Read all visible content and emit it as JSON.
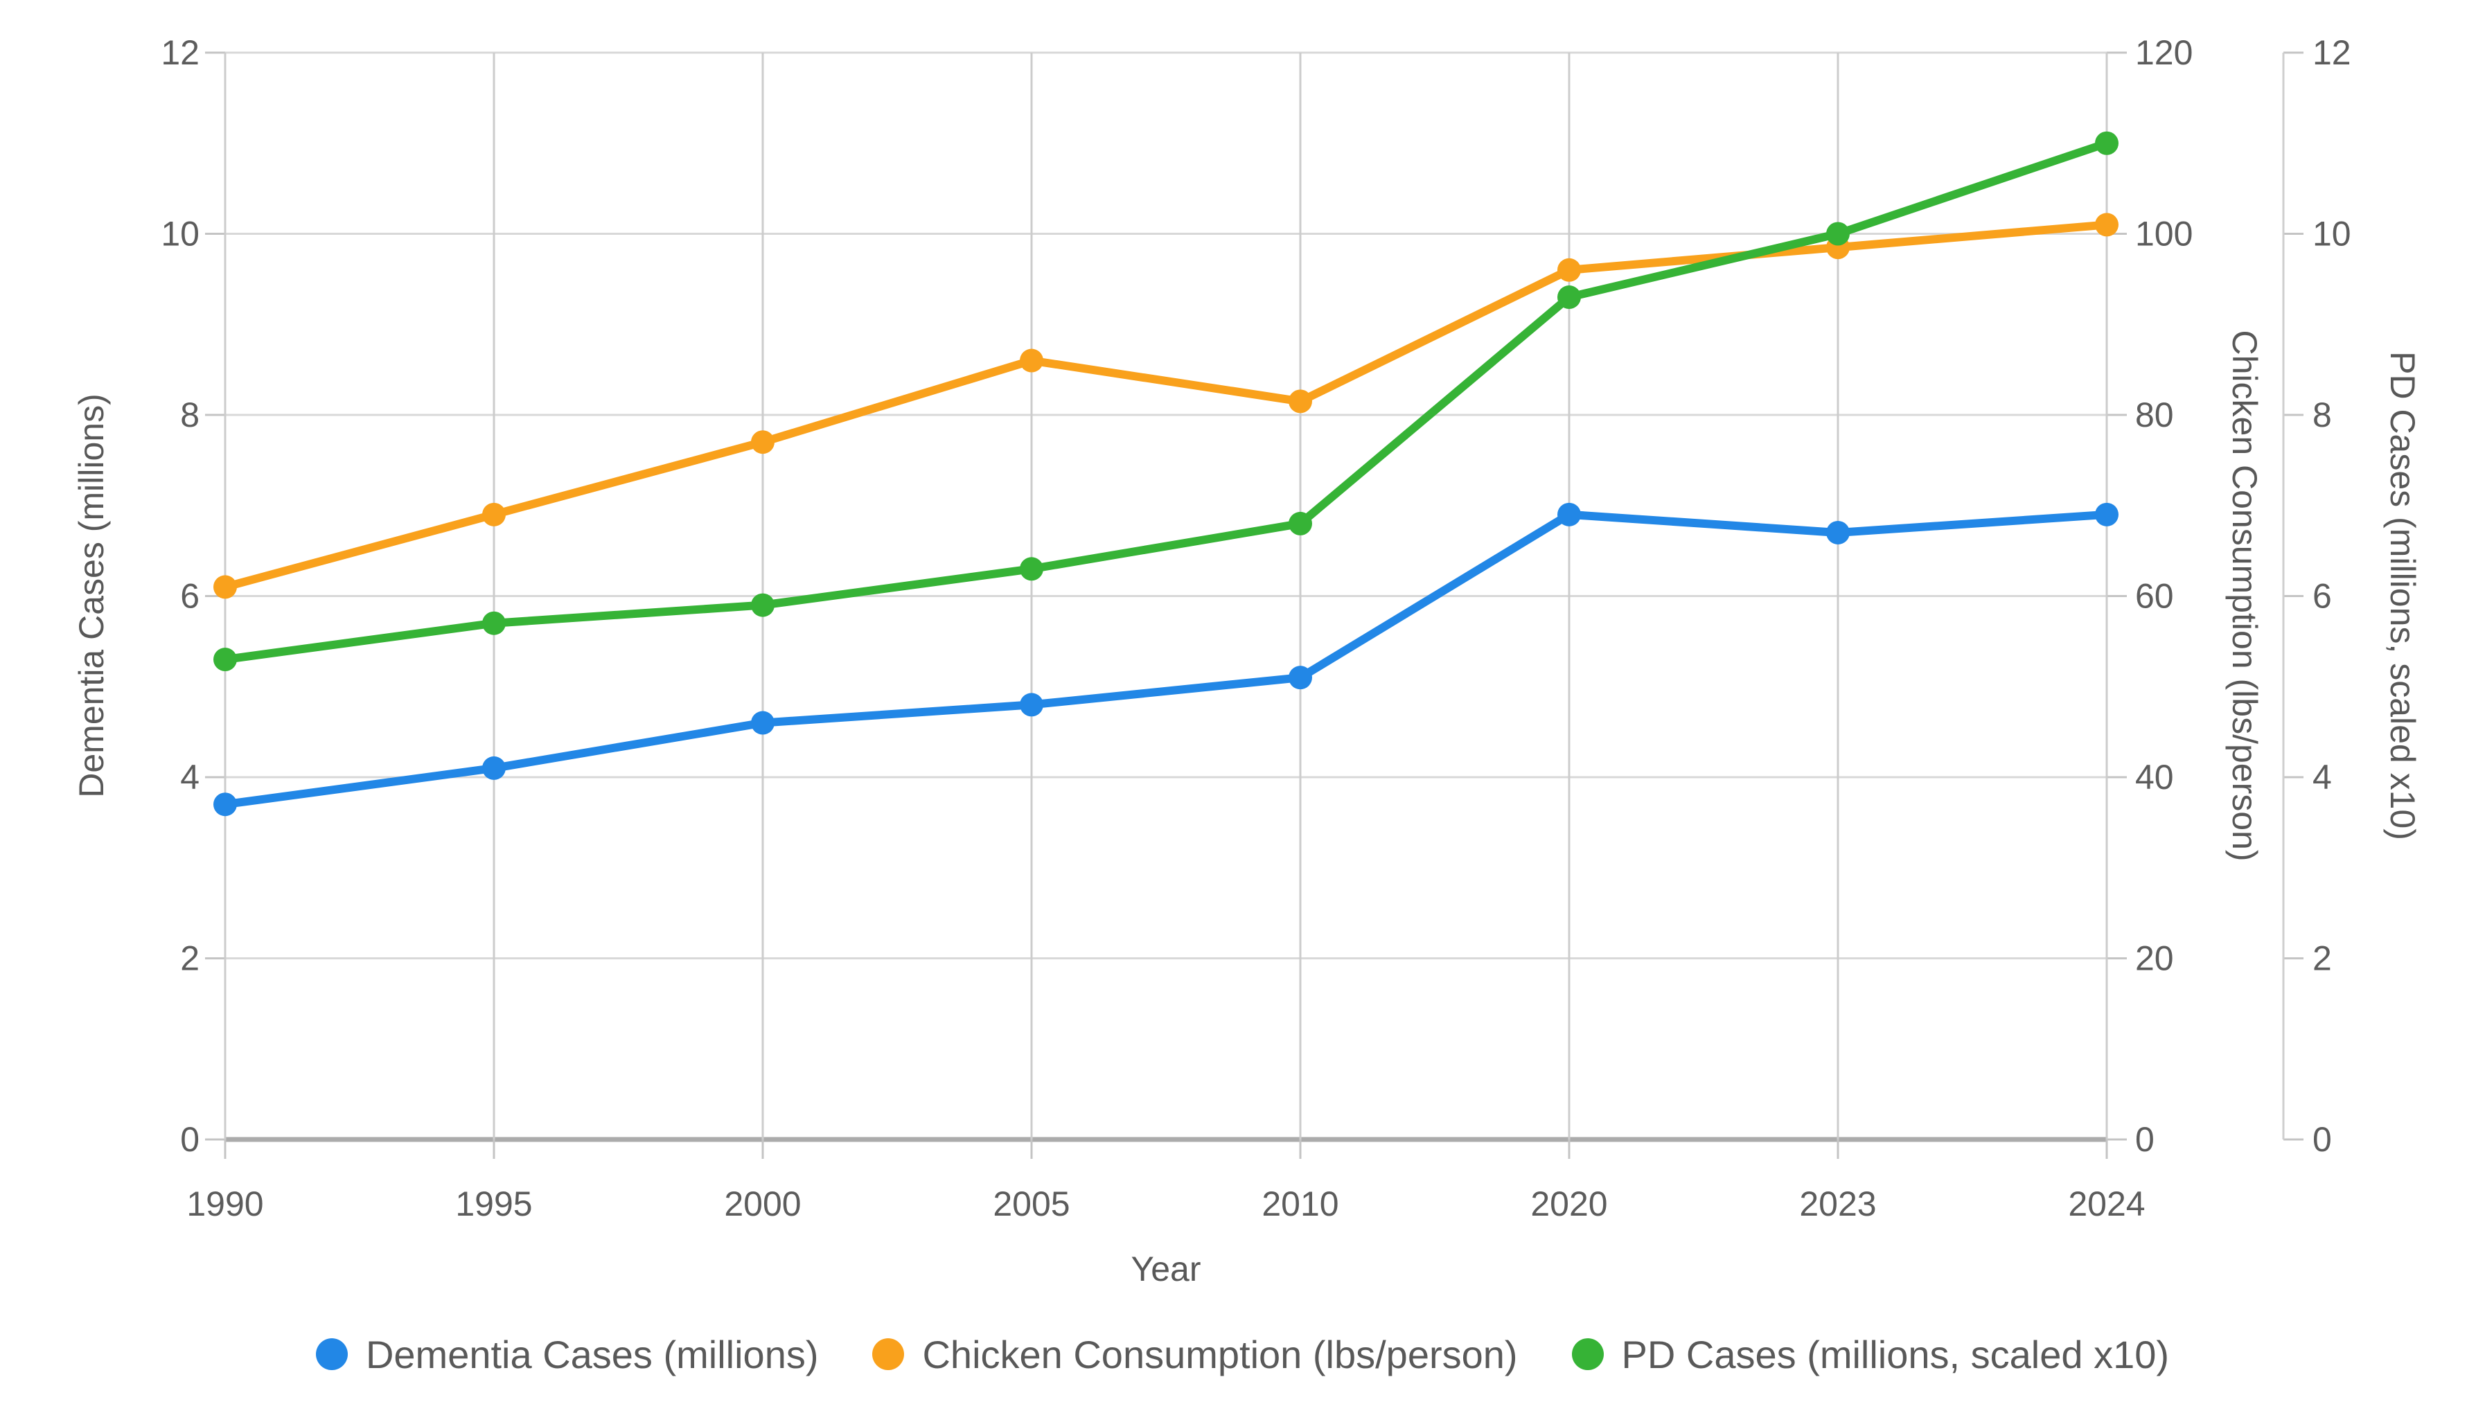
{
  "chart_data": {
    "type": "line",
    "x": [
      "1990",
      "1995",
      "2000",
      "2005",
      "2010",
      "2020",
      "2023",
      "2024"
    ],
    "xlabel": "Year",
    "grid": true,
    "legend_position": "bottom",
    "series": [
      {
        "name": "Dementia Cases (millions)",
        "axis": "left",
        "color": "#2287E6",
        "values": [
          3.7,
          4.1,
          4.6,
          4.8,
          5.1,
          6.9,
          6.7,
          6.9
        ]
      },
      {
        "name": "Chicken Consumption (lbs/person)",
        "axis": "right1",
        "color": "#F9A11C",
        "values": [
          61,
          69,
          77,
          86,
          81.5,
          96,
          98.5,
          101
        ]
      },
      {
        "name": "PD Cases (millions, scaled x10)",
        "axis": "right2",
        "color": "#36B336",
        "values": [
          5.3,
          5.7,
          5.9,
          6.3,
          6.8,
          9.3,
          10.0,
          11.0
        ]
      }
    ],
    "axes": {
      "left": {
        "label": "Dementia Cases (millions)",
        "min": 0,
        "max": 12,
        "ticks": [
          0,
          2,
          4,
          6,
          8,
          10,
          12
        ]
      },
      "right1": {
        "label": "Chicken Consumption (lbs/person)",
        "min": 0,
        "max": 120,
        "ticks": [
          0,
          20,
          40,
          60,
          80,
          100,
          120
        ]
      },
      "right2": {
        "label": "PD Cases (millions, scaled x10)",
        "min": 0,
        "max": 12,
        "ticks": [
          0,
          2,
          4,
          6,
          8,
          10,
          12
        ]
      }
    }
  },
  "colors": {
    "grid": "#d8d8d8",
    "grid_vertical": "#cccccc",
    "baseline": "#ababab",
    "tick": "#c4c4c4",
    "axis_line": "#cfcfcf",
    "text": "#5c5c5c"
  }
}
